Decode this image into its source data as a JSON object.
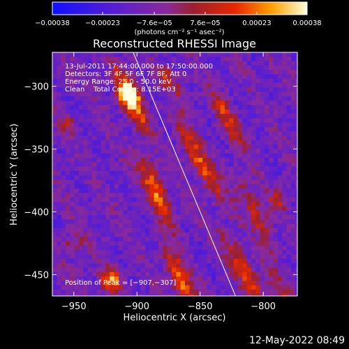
{
  "chart_data": {
    "type": "heatmap",
    "title": "Reconstructed RHESSI Image",
    "xlabel": "Heliocentric X (arcsec)",
    "ylabel": "Heliocentric Y (arcsec)",
    "xlim": [
      -967,
      -773
    ],
    "ylim": [
      -467,
      -273
    ],
    "x_ticks": [
      -950,
      -900,
      -850,
      -800
    ],
    "x_tick_labels": [
      "−950",
      "−900",
      "−850",
      "−800"
    ],
    "y_ticks": [
      -300,
      -350,
      -400,
      -450
    ],
    "y_tick_labels": [
      "−300",
      "−350",
      "−400",
      "−450"
    ],
    "colorbar": {
      "min": -0.00038,
      "max": 0.00038,
      "tick_values": [
        -0.00038,
        -0.00023,
        -7.6e-05,
        7.6e-05,
        0.00023,
        0.00038
      ],
      "tick_labels": [
        "−0.00038",
        "−0.00023",
        "−7.6e−05",
        "7.6e−05",
        "0.00023",
        "0.00038"
      ],
      "unit_label": "(photons cm⁻² s⁻¹ asec⁻²)"
    },
    "annotations": [
      "13-Jul-2011 17:44:00.000 to 17:50:00.000",
      "Detectors: 3F 4F 5F 6F 7F 8F, Att 0",
      "Energy Range: 25.0 - 50.0 keV",
      "Clean    Total Counts: 8.15E+03"
    ],
    "peak_label": "Position of Peak = [−907,−307]",
    "peak": [
      -907,
      -307
    ],
    "limb_line": [
      [
        -903,
        -273
      ],
      [
        -822,
        -467
      ]
    ],
    "bright_ridges": [
      {
        "start": [
          -912,
          -282
        ],
        "end": [
          -862,
          -467
        ],
        "peak": 0.00036
      },
      {
        "start": [
          -878,
          -293
        ],
        "end": [
          -806,
          -467
        ],
        "peak": 0.0003
      },
      {
        "start": [
          -835,
          -307
        ],
        "end": [
          -784,
          -467
        ],
        "peak": 0.00022
      }
    ],
    "bright_spots": [
      {
        "center": [
          -907,
          -307
        ],
        "value": 0.00038
      },
      {
        "center": [
          -921,
          -455
        ],
        "value": 0.00036
      },
      {
        "center": [
          -950,
          -425
        ],
        "value": 0.00016
      },
      {
        "center": [
          -957,
          -330
        ],
        "value": 0.00014
      },
      {
        "center": [
          -788,
          -390
        ],
        "value": 0.00018
      }
    ],
    "grid": false
  },
  "timestamp": "12-May-2022 08:49"
}
